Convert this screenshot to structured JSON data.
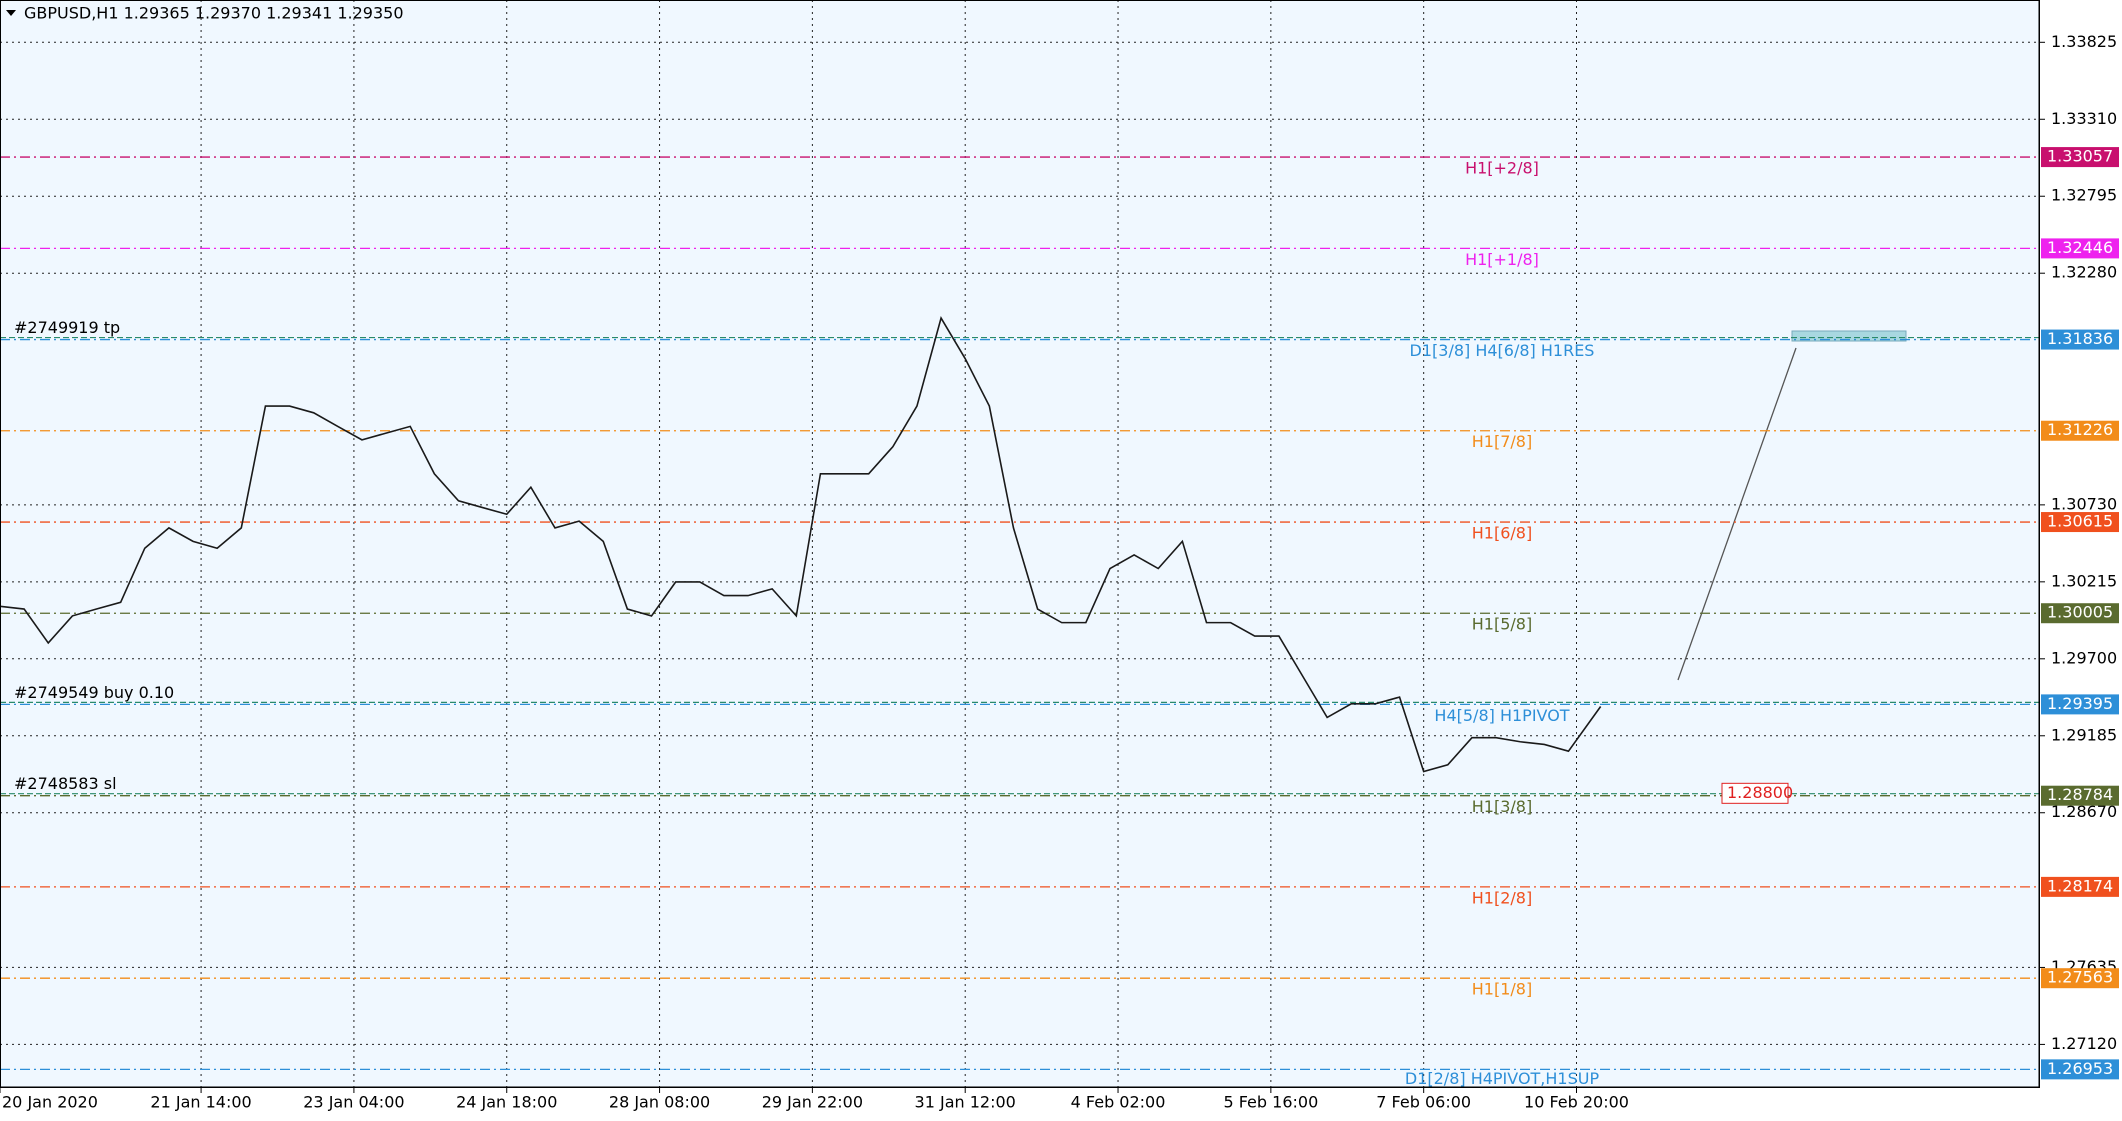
{
  "chart_data": {
    "type": "line",
    "title": "GBPUSD,H1  1.29365 1.29370 1.29341 1.29350",
    "x": [
      0,
      6,
      12,
      18,
      24,
      30,
      36,
      42,
      48,
      54,
      60,
      66,
      72,
      78,
      84,
      90,
      96,
      102,
      108,
      114,
      120,
      126,
      132,
      138,
      144,
      150,
      156,
      162,
      168,
      174,
      180,
      186,
      192,
      198,
      204,
      210,
      216,
      222,
      228,
      234,
      240,
      246,
      252,
      258,
      264,
      270,
      276,
      282,
      288,
      294,
      300,
      306,
      312,
      318,
      324,
      330,
      336,
      342,
      348,
      354,
      360,
      366,
      372,
      378,
      384,
      390,
      398
    ],
    "series": [
      {
        "name": "GBPUSD",
        "color": "#1a1a1a",
        "values": [
          1.30051,
          1.30033,
          1.29806,
          1.29987,
          1.30033,
          1.30078,
          1.3044,
          1.30576,
          1.30486,
          1.3044,
          1.30576,
          1.31391,
          1.31391,
          1.31346,
          1.31255,
          1.31165,
          1.3121,
          1.31255,
          1.30938,
          1.30757,
          1.30712,
          1.30667,
          1.30848,
          1.30576,
          1.30621,
          1.30486,
          1.30033,
          1.29987,
          1.30214,
          1.30214,
          1.30123,
          1.30123,
          1.30168,
          1.29987,
          1.30938,
          1.30938,
          1.30938,
          1.31119,
          1.31391,
          1.3198,
          1.31708,
          1.31391,
          1.30576,
          1.30033,
          1.29942,
          1.29942,
          1.30304,
          1.30395,
          1.30304,
          1.30486,
          1.29942,
          1.29942,
          1.29852,
          1.29852,
          1.2958,
          1.29308,
          1.29399,
          1.29399,
          1.29444,
          1.28946,
          1.28991,
          1.29172,
          1.29172,
          1.29145,
          1.29127,
          1.29082,
          1.29381
        ]
      }
    ],
    "xlim": [
      0,
      507
    ],
    "ylim": [
      1.26835,
      1.34108
    ],
    "xticks": [
      {
        "value": 0,
        "label": "20 Jan 2020"
      },
      {
        "value": 50,
        "label": "21 Jan 14:00"
      },
      {
        "value": 88,
        "label": "23 Jan 04:00"
      },
      {
        "value": 126,
        "label": "24 Jan 18:00"
      },
      {
        "value": 164,
        "label": "28 Jan 08:00"
      },
      {
        "value": 202,
        "label": "29 Jan 22:00"
      },
      {
        "value": 240,
        "label": "31 Jan 12:00"
      },
      {
        "value": 278,
        "label": "4 Feb 02:00"
      },
      {
        "value": 316,
        "label": "5 Feb 16:00"
      },
      {
        "value": 354,
        "label": "7 Feb 06:00"
      },
      {
        "value": 392,
        "label": "10 Feb 20:00"
      }
    ],
    "yticks": [
      {
        "value": 1.33825,
        "label": "1.33825"
      },
      {
        "value": 1.3331,
        "label": "1.33310"
      },
      {
        "value": 1.32795,
        "label": "1.32795"
      },
      {
        "value": 1.3228,
        "label": "1.32280"
      },
      {
        "value": 1.3073,
        "label": "1.30730"
      },
      {
        "value": 1.30215,
        "label": "1.30215"
      },
      {
        "value": 1.297,
        "label": "1.29700"
      },
      {
        "value": 1.29185,
        "label": "1.29185"
      },
      {
        "value": 1.2867,
        "label": "1.28670"
      },
      {
        "value": 1.27635,
        "label": "1.27635"
      },
      {
        "value": 1.2712,
        "label": "1.27120"
      }
    ],
    "grid": true,
    "levels": [
      {
        "name": "H1[+2/8]",
        "value": 1.33057,
        "color": "#c8106e"
      },
      {
        "name": "H1[+1/8]",
        "value": 1.32446,
        "color": "#ee22ee"
      },
      {
        "name": "D1[3/8] H4[6/8] H1RES",
        "value": 1.31836,
        "color": "#2d8fd8"
      },
      {
        "name": "H1[7/8]",
        "value": 1.31226,
        "color": "#f28c1a"
      },
      {
        "name": "H1[6/8]",
        "value": 1.30615,
        "color": "#f0501e"
      },
      {
        "name": "H1[5/8]",
        "value": 1.30005,
        "color": "#5a6b2f"
      },
      {
        "name": "H4[5/8] H1PIVOT",
        "value": 1.29395,
        "color": "#2d8fd8"
      },
      {
        "name": "H1[3/8]",
        "value": 1.28784,
        "color": "#5a6b2f"
      },
      {
        "name": "H1[2/8]",
        "value": 1.28174,
        "color": "#f0501e"
      },
      {
        "name": "H1[1/8]",
        "value": 1.27563,
        "color": "#f28c1a"
      },
      {
        "name": "D1[2/8] H4PIVOT,H1SUP",
        "value": 1.26953,
        "color": "#2d8fd8"
      }
    ],
    "trades": [
      {
        "label": "#2749919 tp",
        "price": 1.31836
      },
      {
        "label": "#2749549 buy 0.10",
        "price": 1.29395
      },
      {
        "label": "#2748583 sl",
        "price": 1.28784
      }
    ],
    "pending_order": {
      "label": "1.28800",
      "price": 1.288
    }
  }
}
